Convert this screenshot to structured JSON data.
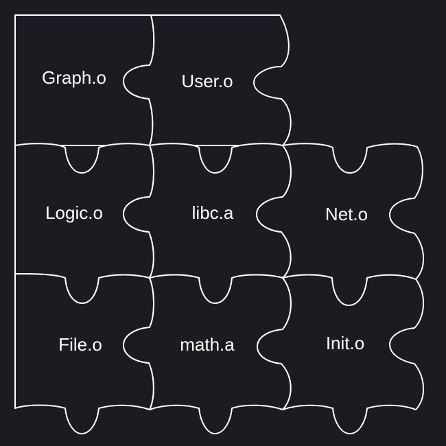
{
  "diagram": {
    "background_color": "#1c1b22",
    "line_color": "#ffffff",
    "pieces": [
      {
        "id": "graph",
        "label": "Graph.o"
      },
      {
        "id": "user",
        "label": "User.o"
      },
      {
        "id": "logic",
        "label": "Logic.o"
      },
      {
        "id": "libc",
        "label": "libc.a"
      },
      {
        "id": "net",
        "label": "Net.o"
      },
      {
        "id": "file",
        "label": "File.o"
      },
      {
        "id": "math",
        "label": "math.a"
      },
      {
        "id": "init",
        "label": "Init.o"
      }
    ]
  }
}
